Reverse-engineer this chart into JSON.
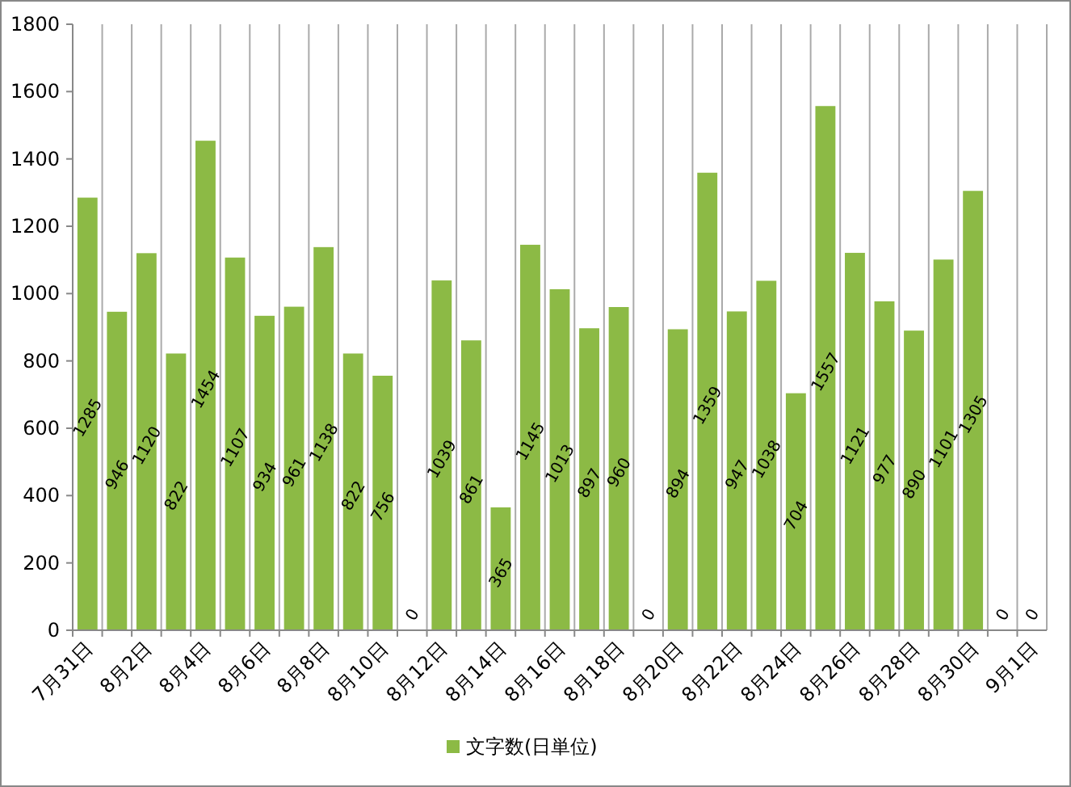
{
  "chart_data": {
    "type": "bar",
    "categories": [
      "7月31日",
      null,
      "8月2日",
      null,
      "8月4日",
      null,
      "8月6日",
      null,
      "8月8日",
      null,
      "8月10日",
      null,
      "8月12日",
      null,
      "8月14日",
      null,
      "8月16日",
      null,
      "8月18日",
      null,
      "8月20日",
      null,
      "8月22日",
      null,
      "8月24日",
      null,
      "8月26日",
      null,
      "8月28日",
      null,
      "8月30日",
      null,
      "9月1日"
    ],
    "series": [
      {
        "name": "文字数(日単位)",
        "color": "#8cba45",
        "values": [
          1285,
          946,
          1120,
          822,
          1454,
          1107,
          934,
          961,
          1138,
          822,
          756,
          0,
          1039,
          861,
          365,
          1145,
          1013,
          897,
          960,
          0,
          894,
          1359,
          947,
          1038,
          704,
          1557,
          1121,
          977,
          890,
          1101,
          1305,
          0,
          0
        ]
      }
    ],
    "ylim": [
      0,
      1800
    ],
    "yticks": [
      0,
      200,
      400,
      600,
      800,
      1000,
      1200,
      1400,
      1600,
      1800
    ],
    "grid": "x",
    "legend": "bottom",
    "data_labels": true
  }
}
